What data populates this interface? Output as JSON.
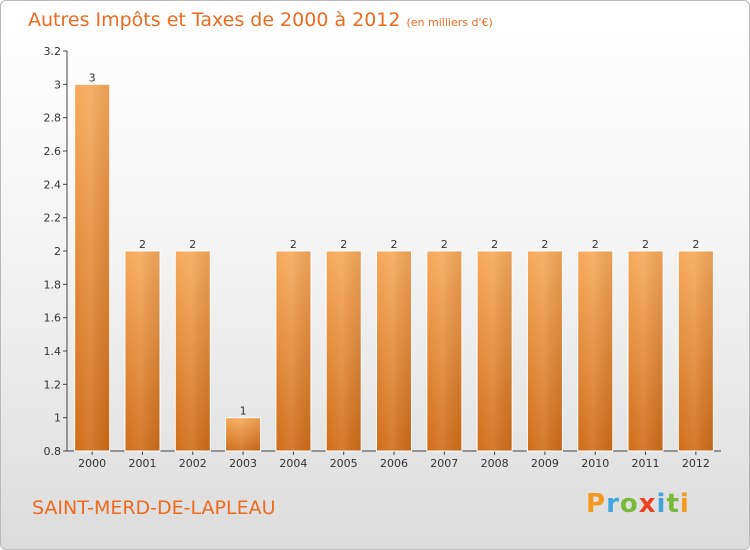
{
  "title": "Autres Impôts et Taxes de 2000 à 2012",
  "unit": "(en milliers d'€)",
  "town": "SAINT-MERD-DE-LAPLEAU",
  "logo": {
    "letters": [
      "P",
      "r",
      "o",
      "x",
      "i",
      "t",
      "i"
    ],
    "colors": [
      "#f39a1e",
      "#43a3dd",
      "#7ab83a",
      "#e8431e",
      "#43a3dd",
      "#7ab83a",
      "#f39a1e"
    ]
  },
  "colors": {
    "bar": "#f0963a",
    "barDark": "#d26f1a",
    "accent": "#ee6a1e"
  },
  "chart_data": {
    "type": "bar",
    "categories": [
      "2000",
      "2001",
      "2002",
      "2003",
      "2004",
      "2005",
      "2006",
      "2007",
      "2008",
      "2009",
      "2010",
      "2011",
      "2012"
    ],
    "values": [
      3,
      2,
      2,
      1,
      2,
      2,
      2,
      2,
      2,
      2,
      2,
      2,
      2
    ],
    "data_labels": [
      "3",
      "2",
      "2",
      "1",
      "2",
      "2",
      "2",
      "2",
      "2",
      "2",
      "2",
      "2",
      "2"
    ],
    "yticks": [
      "0.8",
      "1",
      "1.2",
      "1.4",
      "1.6",
      "1.8",
      "2",
      "2.2",
      "2.4",
      "2.6",
      "2.8",
      "3",
      "3.2"
    ],
    "ylim": [
      0.8,
      3.2
    ],
    "grid": false,
    "legend": "none"
  }
}
